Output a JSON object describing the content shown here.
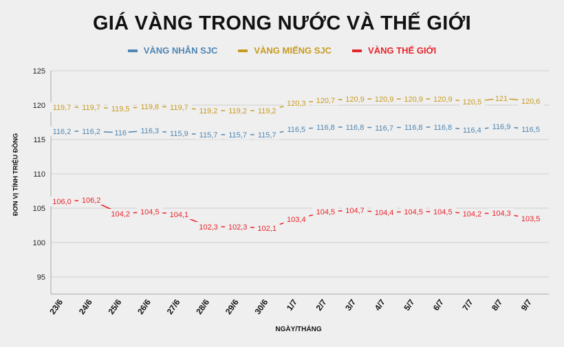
{
  "chart_data": {
    "type": "line",
    "title": "GIÁ VÀNG TRONG NƯỚC VÀ THẾ GIỚI",
    "xlabel": "NGÀY/THÁNG",
    "ylabel": "ĐƠN VỊ TÍNH TRIỆU ĐỒNG",
    "categories": [
      "23/6",
      "24/6",
      "25/6",
      "26/6",
      "27/6",
      "28/6",
      "29/6",
      "30/6",
      "1/7",
      "2/7",
      "3/7",
      "4/7",
      "5/7",
      "6/7",
      "7/7",
      "8/7",
      "9/7"
    ],
    "yticks": [
      95,
      100,
      105,
      110,
      115,
      120,
      125
    ],
    "ylim": [
      92.5,
      125
    ],
    "grid": true,
    "legend_position": "top",
    "series": [
      {
        "name": "VÀNG NHẪN SJC",
        "color": "#4e86b3",
        "values": [
          116.2,
          116.2,
          116,
          116.3,
          115.9,
          115.7,
          115.7,
          115.7,
          116.5,
          116.8,
          116.8,
          116.7,
          116.8,
          116.8,
          116.4,
          116.9,
          116.5
        ],
        "labels": [
          "116,2",
          "116,2",
          "116",
          "116,3",
          "115,9",
          "115,7",
          "115,7",
          "115,7",
          "116,5",
          "116,8",
          "116,8",
          "116,7",
          "116,8",
          "116,8",
          "116,4",
          "116,9",
          "116,5"
        ]
      },
      {
        "name": "VÀNG MIẾNG SJC",
        "color": "#c79a1e",
        "values": [
          119.7,
          119.7,
          119.5,
          119.8,
          119.7,
          119.2,
          119.2,
          119.2,
          120.3,
          120.7,
          120.9,
          120.9,
          120.9,
          120.9,
          120.5,
          121,
          120.6
        ],
        "labels": [
          "119,7",
          "119,7",
          "119,5",
          "119,8",
          "119,7",
          "119,2",
          "119,2",
          "119,2",
          "120,3",
          "120,7",
          "120,9",
          "120,9",
          "120,9",
          "120,9",
          "120,5",
          "121",
          "120,6"
        ]
      },
      {
        "name": "VÀNG THẾ GIỚI",
        "color": "#e8242b",
        "values": [
          106.0,
          106.2,
          104.2,
          104.5,
          104.1,
          102.3,
          102.3,
          102.1,
          103.4,
          104.5,
          104.7,
          104.4,
          104.5,
          104.5,
          104.2,
          104.3,
          103.5
        ],
        "labels": [
          "106,0",
          "106,2",
          "104,2",
          "104,5",
          "104,1",
          "102,3",
          "102,3",
          "102,1",
          "103,4",
          "104,5",
          "104,7",
          "104,4",
          "104,5",
          "104,5",
          "104,2",
          "104,3",
          "103,5"
        ]
      }
    ]
  }
}
